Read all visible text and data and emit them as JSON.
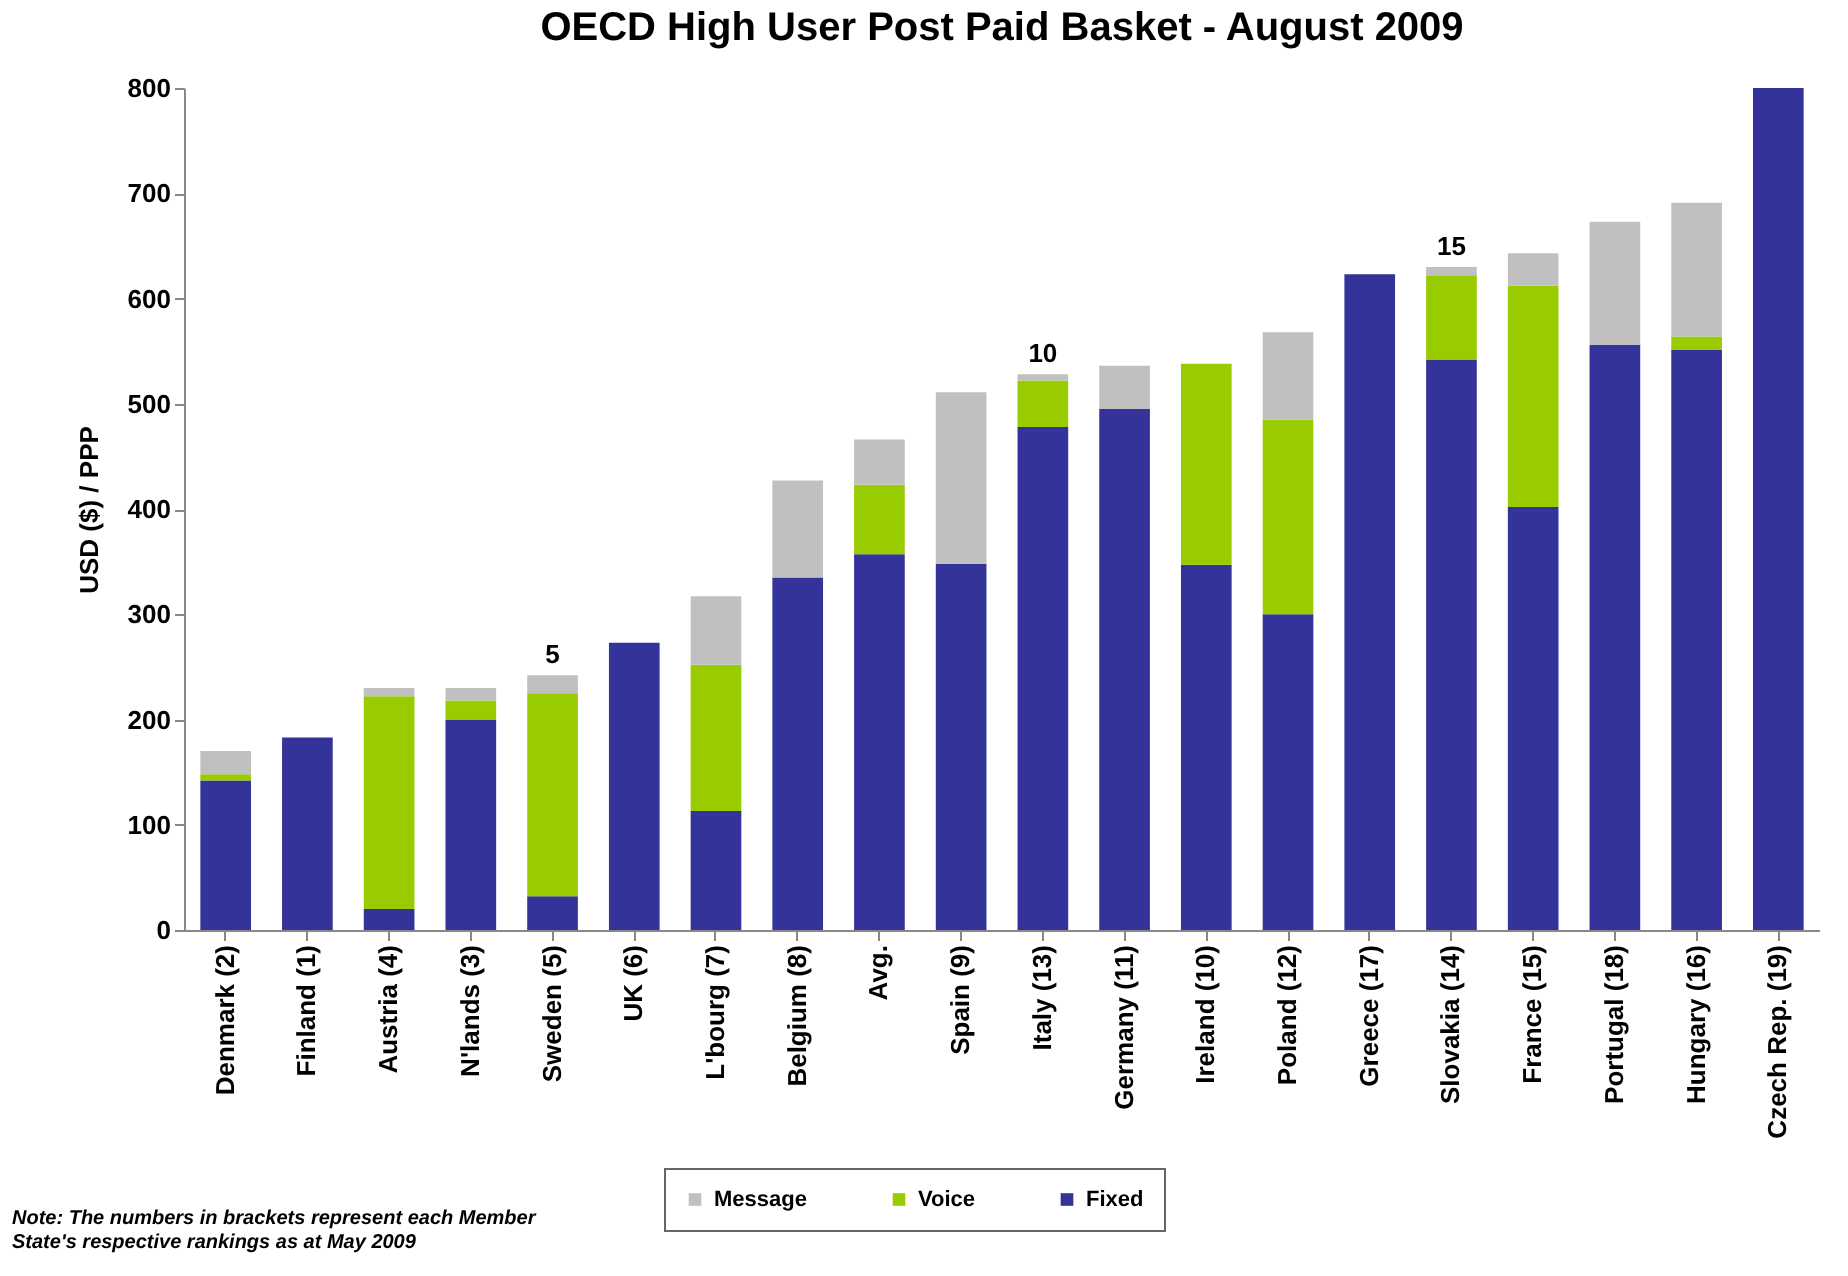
{
  "chart_data": {
    "type": "bar",
    "title": "OECD High User Post Paid Basket - August 2009",
    "ylabel": "USD ($) / PPP",
    "stacked": true,
    "legend": "bottom",
    "grid": false,
    "categories": [
      "Denmark (2)",
      "Finland (1)",
      "Austria (4)",
      "N'lands (3)",
      "Sweden (5)",
      "UK (6)",
      "L'bourg (7)",
      "Belgium (8)",
      "Avg.",
      "Spain (9)",
      "Italy (13)",
      "Germany (11)",
      "Ireland (10)",
      "Poland (12)",
      "Greece (17)",
      "Slovakia (14)",
      "France (15)",
      "Portugal (18)",
      "Hungary (16)",
      "Czech Rep. (19)"
    ],
    "series": [
      {
        "name": "Fixed",
        "color": "#333399",
        "values": [
          142,
          183,
          20,
          200,
          32,
          273,
          113,
          335,
          357,
          348,
          478,
          495,
          347,
          300,
          623,
          542,
          402,
          556,
          551,
          800
        ]
      },
      {
        "name": "Voice",
        "color": "#99cc00",
        "values": [
          6,
          0,
          202,
          18,
          193,
          0,
          139,
          0,
          66,
          0,
          44,
          0,
          191,
          185,
          0,
          80,
          210,
          0,
          13,
          0
        ]
      },
      {
        "name": "Message",
        "color": "#c0c0c0",
        "values": [
          22,
          0,
          8,
          12,
          17,
          0,
          65,
          92,
          43,
          163,
          6,
          41,
          0,
          83,
          0,
          8,
          31,
          117,
          127,
          0
        ]
      }
    ],
    "ylim": [
      0,
      800
    ],
    "yticks": [
      0,
      100,
      200,
      300,
      400,
      500,
      600,
      700,
      800
    ],
    "annotations": [
      {
        "text": "5",
        "x": "Sweden (5)",
        "y": 242
      },
      {
        "text": "10",
        "x": "Italy (13)",
        "y": 528
      },
      {
        "text": "15",
        "x": "Slovakia (14)",
        "y": 630
      },
      "Note: The numbers in brackets represent each Member State's respective rankings as at May 2009"
    ]
  }
}
